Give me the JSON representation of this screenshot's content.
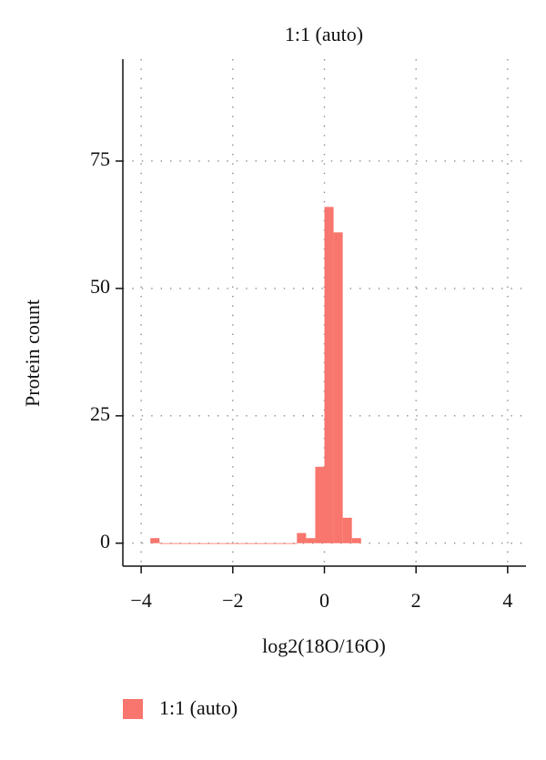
{
  "chart_data": {
    "type": "histogram",
    "title": "1:1 (auto)",
    "x_label": "log2(18O/16O)",
    "y_label": "Protein count",
    "bins": [
      -3.8,
      -3.6,
      -3.4,
      -3.2,
      -3,
      -2.8,
      -2.6,
      -2.4,
      -2.2,
      -2,
      -1.8,
      -1.6,
      -1.4,
      -1.2,
      -1,
      -0.8,
      -0.6,
      -0.4,
      -0.2,
      0,
      0.2,
      0.4,
      0.6,
      0.8
    ],
    "series": [
      {
        "name": "1:1 (auto)",
        "color": "#f8766d",
        "values": [
          1,
          0,
          0,
          0,
          0,
          0,
          0,
          0,
          0,
          0,
          0,
          0,
          0,
          0,
          0,
          0,
          2,
          1,
          15,
          66,
          61,
          5,
          1
        ]
      }
    ],
    "xlim": [
      -4.4,
      4.4
    ],
    "ylim": [
      -4.5,
      95
    ],
    "xticks": [
      {
        "value": -4,
        "label": "−4"
      },
      {
        "value": -2,
        "label": "−2"
      },
      0,
      2,
      4
    ],
    "yticks": [
      0,
      25,
      50,
      75
    ],
    "grid": true
  }
}
